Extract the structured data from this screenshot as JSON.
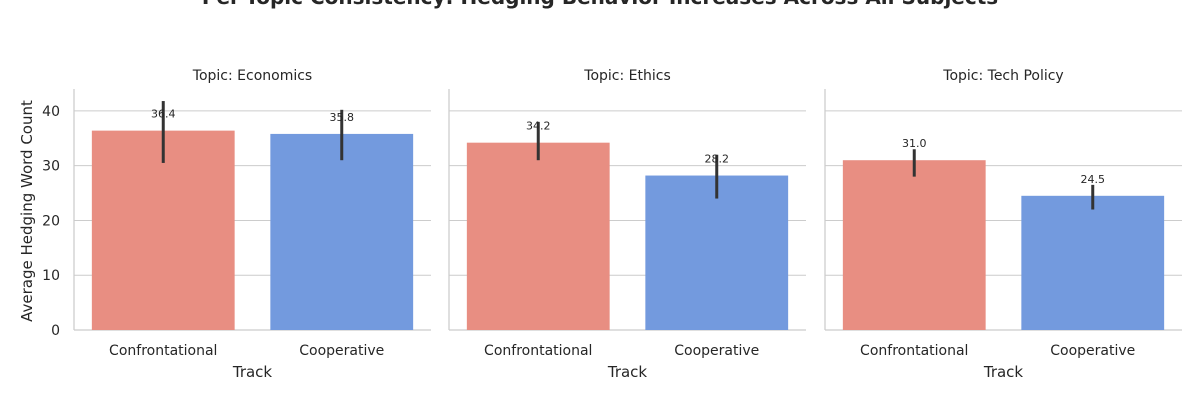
{
  "chart_data": {
    "type": "bar",
    "title": "Per-Topic Consistency: Hedging Behavior Increases Across All Subjects",
    "ylabel": "Average Hedging Word Count",
    "xlabel": "Track",
    "ylim": [
      0,
      44
    ],
    "yticks": [
      0,
      10,
      20,
      30,
      40
    ],
    "grid": "horizontal",
    "colors": {
      "Confrontational": "#e88e82",
      "Cooperative": "#739ade"
    },
    "panels": [
      {
        "title": "Topic: Economics",
        "categories": [
          "Confrontational",
          "Cooperative"
        ],
        "values": [
          36.4,
          35.8
        ],
        "labels": [
          "36.4",
          "35.8"
        ],
        "err_low": [
          30.5,
          31.0
        ],
        "err_high": [
          41.8,
          40.2
        ]
      },
      {
        "title": "Topic: Ethics",
        "categories": [
          "Confrontational",
          "Cooperative"
        ],
        "values": [
          34.2,
          28.2
        ],
        "labels": [
          "34.2",
          "28.2"
        ],
        "err_low": [
          31.0,
          24.0
        ],
        "err_high": [
          38.0,
          32.0
        ]
      },
      {
        "title": "Topic: Tech Policy",
        "categories": [
          "Confrontational",
          "Cooperative"
        ],
        "values": [
          31.0,
          24.5
        ],
        "labels": [
          "31.0",
          "24.5"
        ],
        "err_low": [
          28.0,
          22.0
        ],
        "err_high": [
          33.0,
          26.5
        ]
      }
    ]
  }
}
